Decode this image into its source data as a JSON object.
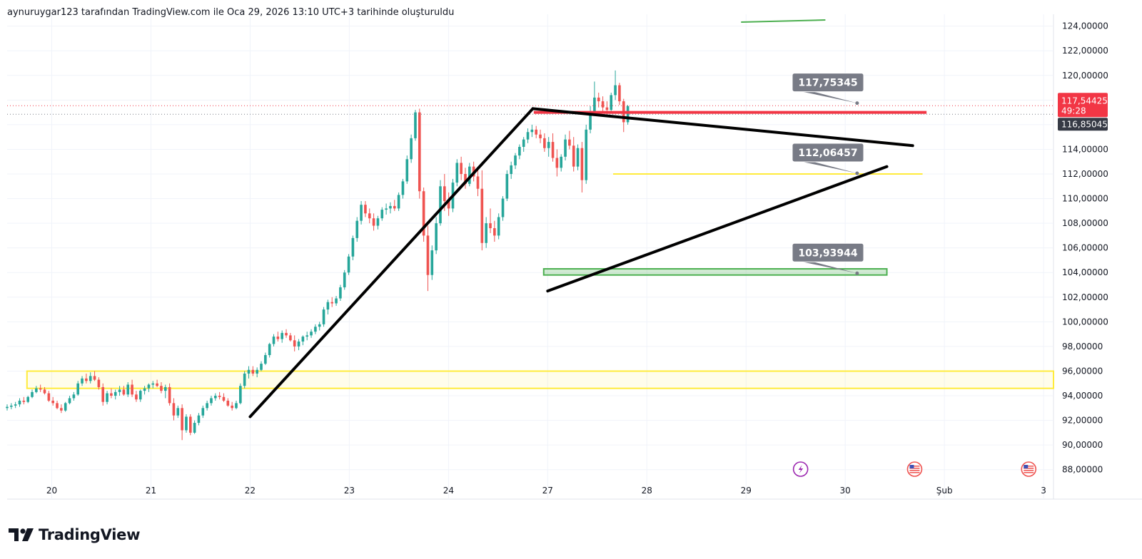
{
  "header": {
    "attribution": "aynuruygar123 tarafından TradingView.com ile Oca 29, 2026 13:10 UTC+3 tarihinde oluşturuldu"
  },
  "brand": {
    "name": "TradingView"
  },
  "colors": {
    "up": "#26a69a",
    "down": "#ef5350",
    "trendline": "#000000",
    "resistance": "#f23645",
    "support_zone": "#4caf50",
    "yellow_zone": "#ffeb3b",
    "callout_bg": "#787b86",
    "last_price_bg": "#f23645",
    "prev_price_bg": "#363a45"
  },
  "chart_data": {
    "type": "candlestick",
    "y_axis": {
      "range": [
        87,
        124.5
      ],
      "ticks": [
        "124,00000",
        "122,00000",
        "120,00000",
        "118,00000",
        "116,00000",
        "114,00000",
        "112,00000",
        "110,00000",
        "108,00000",
        "106,00000",
        "104,00000",
        "102,00000",
        "100,00000",
        "98,00000",
        "96,00000",
        "94,00000",
        "92,00000",
        "90,00000",
        "88,00000"
      ],
      "tick_values": [
        124,
        122,
        120,
        118,
        116,
        114,
        112,
        110,
        108,
        106,
        104,
        102,
        100,
        98,
        96,
        94,
        92,
        90,
        88
      ],
      "grid": true
    },
    "x_axis": {
      "ticks": [
        "20",
        "21",
        "22",
        "23",
        "24",
        "27",
        "28",
        "29",
        "30",
        "Şub",
        "3"
      ],
      "tick_positions": [
        1.0,
        2.0,
        3.0,
        4.0,
        5.0,
        6.0,
        7.0,
        8.0,
        9.0,
        10.0,
        11.0
      ],
      "range": [
        0.55,
        11.1
      ]
    },
    "price_tags": {
      "last": {
        "price": "117,54425",
        "countdown": "49:28",
        "value": 117.54
      },
      "prev": {
        "price": "116,85045",
        "value": 116.85
      }
    },
    "callouts": [
      {
        "label": "117,75345",
        "value": 117.75
      },
      {
        "label": "112,06457",
        "value": 112.06
      },
      {
        "label": "103,93944",
        "value": 103.94
      }
    ],
    "zones": [
      {
        "name": "yellow-support-zone",
        "low": 94.6,
        "high": 96.0,
        "x_start": 0.75,
        "x_end": 11.1
      },
      {
        "name": "green-demand-zone",
        "low": 103.8,
        "high": 104.3,
        "x_start": 5.96,
        "x_end": 9.42
      }
    ],
    "levels": [
      {
        "name": "resistance-line",
        "value": 117.0,
        "x_start": 5.86,
        "x_end": 9.82
      },
      {
        "name": "yellow-level-line",
        "value": 112.0,
        "x_start": 6.66,
        "x_end": 9.78
      }
    ],
    "trendlines": [
      {
        "name": "impulse-leg-up",
        "from": [
          3.0,
          92.3
        ],
        "to": [
          5.85,
          117.3
        ]
      },
      {
        "name": "triangle-upper-line",
        "from": [
          5.85,
          117.3
        ],
        "to": [
          9.68,
          114.3
        ]
      },
      {
        "name": "triangle-lower-line",
        "from": [
          6.0,
          102.5
        ],
        "to": [
          9.42,
          112.6
        ]
      }
    ],
    "candles_start": 0.55,
    "candles_step": 0.042,
    "candles": [
      [
        93.0,
        93.3,
        92.8,
        93.1
      ],
      [
        93.1,
        93.4,
        92.9,
        93.2
      ],
      [
        93.2,
        93.5,
        93.0,
        93.3
      ],
      [
        93.3,
        93.8,
        93.1,
        93.6
      ],
      [
        93.6,
        93.9,
        93.3,
        93.5
      ],
      [
        93.5,
        94.0,
        93.4,
        93.9
      ],
      [
        93.9,
        94.5,
        93.8,
        94.3
      ],
      [
        94.3,
        94.8,
        94.2,
        94.6
      ],
      [
        94.6,
        94.9,
        94.3,
        94.5
      ],
      [
        94.5,
        94.7,
        94.1,
        94.2
      ],
      [
        94.2,
        94.4,
        93.5,
        93.6
      ],
      [
        93.6,
        93.9,
        93.2,
        93.4
      ],
      [
        93.4,
        93.6,
        92.9,
        93.0
      ],
      [
        93.0,
        93.3,
        92.6,
        92.8
      ],
      [
        92.8,
        93.5,
        92.7,
        93.4
      ],
      [
        93.4,
        94.0,
        93.3,
        93.8
      ],
      [
        93.8,
        94.3,
        93.6,
        94.1
      ],
      [
        94.1,
        95.2,
        94.0,
        95.0
      ],
      [
        95.0,
        95.6,
        94.8,
        95.4
      ],
      [
        95.4,
        95.8,
        95.0,
        95.2
      ],
      [
        95.2,
        95.9,
        95.0,
        95.6
      ],
      [
        95.6,
        96.0,
        95.2,
        95.3
      ],
      [
        95.3,
        95.5,
        94.5,
        94.7
      ],
      [
        94.7,
        95.0,
        93.2,
        93.5
      ],
      [
        93.5,
        94.4,
        93.3,
        94.2
      ],
      [
        94.2,
        94.6,
        93.8,
        94.0
      ],
      [
        94.0,
        94.5,
        93.7,
        94.3
      ],
      [
        94.3,
        94.8,
        94.0,
        94.5
      ],
      [
        94.5,
        94.8,
        94.0,
        94.1
      ],
      [
        94.1,
        95.1,
        93.9,
        94.9
      ],
      [
        94.9,
        95.3,
        93.9,
        94.1
      ],
      [
        94.1,
        94.4,
        93.5,
        93.7
      ],
      [
        93.7,
        94.5,
        93.5,
        94.4
      ],
      [
        94.4,
        94.8,
        94.1,
        94.6
      ],
      [
        94.6,
        95.0,
        94.3,
        94.9
      ],
      [
        94.9,
        95.2,
        94.6,
        95.0
      ],
      [
        95.0,
        95.3,
        94.7,
        94.8
      ],
      [
        94.8,
        95.1,
        94.2,
        94.4
      ],
      [
        94.4,
        94.9,
        93.8,
        94.7
      ],
      [
        94.7,
        95.0,
        93.2,
        93.4
      ],
      [
        93.4,
        93.8,
        92.0,
        92.4
      ],
      [
        92.4,
        93.2,
        92.2,
        93.0
      ],
      [
        93.0,
        93.3,
        90.4,
        91.2
      ],
      [
        91.2,
        92.5,
        91.0,
        92.3
      ],
      [
        92.3,
        92.5,
        90.8,
        91.0
      ],
      [
        91.0,
        92.0,
        90.9,
        91.8
      ],
      [
        91.8,
        92.6,
        91.6,
        92.4
      ],
      [
        92.4,
        93.2,
        92.2,
        93.0
      ],
      [
        93.0,
        93.6,
        92.8,
        93.4
      ],
      [
        93.4,
        94.0,
        93.2,
        93.8
      ],
      [
        93.8,
        94.2,
        93.6,
        94.0
      ],
      [
        94.0,
        94.3,
        93.7,
        93.9
      ],
      [
        93.9,
        94.2,
        93.5,
        93.6
      ],
      [
        93.6,
        93.8,
        93.1,
        93.2
      ],
      [
        93.2,
        93.5,
        92.8,
        93.0
      ],
      [
        93.0,
        93.6,
        92.9,
        93.4
      ],
      [
        93.4,
        95.0,
        93.3,
        94.8
      ],
      [
        94.8,
        96.0,
        94.6,
        95.8
      ],
      [
        95.8,
        96.4,
        95.4,
        96.1
      ],
      [
        96.1,
        96.4,
        95.6,
        95.8
      ],
      [
        95.8,
        96.3,
        95.5,
        96.1
      ],
      [
        96.1,
        96.8,
        96.0,
        96.6
      ],
      [
        96.6,
        97.5,
        96.5,
        97.3
      ],
      [
        97.3,
        98.3,
        97.1,
        98.2
      ],
      [
        98.2,
        99.0,
        98.0,
        98.8
      ],
      [
        98.8,
        99.2,
        98.4,
        98.6
      ],
      [
        98.6,
        99.3,
        98.3,
        99.1
      ],
      [
        99.1,
        99.4,
        98.7,
        98.9
      ],
      [
        98.9,
        99.1,
        98.4,
        98.5
      ],
      [
        98.5,
        98.9,
        97.6,
        98.0
      ],
      [
        98.0,
        98.6,
        97.7,
        98.4
      ],
      [
        98.4,
        98.9,
        98.1,
        98.8
      ],
      [
        98.8,
        99.2,
        98.5,
        98.9
      ],
      [
        98.9,
        99.4,
        98.7,
        99.2
      ],
      [
        99.2,
        99.8,
        99.0,
        99.6
      ],
      [
        99.6,
        100.0,
        99.3,
        99.8
      ],
      [
        99.8,
        101.2,
        99.6,
        101.0
      ],
      [
        101.0,
        101.8,
        100.6,
        101.6
      ],
      [
        101.6,
        102.0,
        101.2,
        101.5
      ],
      [
        101.5,
        102.1,
        101.3,
        101.9
      ],
      [
        101.9,
        103.0,
        101.7,
        102.8
      ],
      [
        102.8,
        104.2,
        102.6,
        104.0
      ],
      [
        104.0,
        105.5,
        103.8,
        105.3
      ],
      [
        105.3,
        107.0,
        105.0,
        106.8
      ],
      [
        106.8,
        108.5,
        106.5,
        108.2
      ],
      [
        108.2,
        109.8,
        107.9,
        109.5
      ],
      [
        109.5,
        109.8,
        108.5,
        108.8
      ],
      [
        108.8,
        109.2,
        108.0,
        108.4
      ],
      [
        108.4,
        108.8,
        107.4,
        107.8
      ],
      [
        107.8,
        108.6,
        107.5,
        108.4
      ],
      [
        108.4,
        109.3,
        108.2,
        109.1
      ],
      [
        109.1,
        109.6,
        108.7,
        109.2
      ],
      [
        109.2,
        109.7,
        108.8,
        109.4
      ],
      [
        109.4,
        109.9,
        109.0,
        109.2
      ],
      [
        109.2,
        110.5,
        109.0,
        110.3
      ],
      [
        110.3,
        111.6,
        110.0,
        111.4
      ],
      [
        111.4,
        113.5,
        111.2,
        113.2
      ],
      [
        113.2,
        115.2,
        112.9,
        114.9
      ],
      [
        114.9,
        117.2,
        114.7,
        117.0
      ],
      [
        117.0,
        117.3,
        110.0,
        110.6
      ],
      [
        110.6,
        110.9,
        106.5,
        107.0
      ],
      [
        107.0,
        107.8,
        102.5,
        103.8
      ],
      [
        103.8,
        106.2,
        103.4,
        105.8
      ],
      [
        105.8,
        108.5,
        105.5,
        108.0
      ],
      [
        108.0,
        111.5,
        107.8,
        111.0
      ],
      [
        111.0,
        112.0,
        109.0,
        109.8
      ],
      [
        109.8,
        110.5,
        108.6,
        109.2
      ],
      [
        109.2,
        111.6,
        108.9,
        111.3
      ],
      [
        111.3,
        113.2,
        111.0,
        112.9
      ],
      [
        112.9,
        113.4,
        111.5,
        112.0
      ],
      [
        112.0,
        112.5,
        110.8,
        111.2
      ],
      [
        111.2,
        112.9,
        111.0,
        112.6
      ],
      [
        112.6,
        113.0,
        111.4,
        111.8
      ],
      [
        111.8,
        112.4,
        110.2,
        110.8
      ],
      [
        110.8,
        112.3,
        105.8,
        106.4
      ],
      [
        106.4,
        108.5,
        106.0,
        108.0
      ],
      [
        108.0,
        109.2,
        107.2,
        107.6
      ],
      [
        107.6,
        108.2,
        106.5,
        107.0
      ],
      [
        107.0,
        108.8,
        106.7,
        108.5
      ],
      [
        108.5,
        110.2,
        108.2,
        110.0
      ],
      [
        110.0,
        112.3,
        109.8,
        112.0
      ],
      [
        112.0,
        113.0,
        111.6,
        112.7
      ],
      [
        112.7,
        113.7,
        112.4,
        113.5
      ],
      [
        113.5,
        114.4,
        113.2,
        114.2
      ],
      [
        114.2,
        115.0,
        113.8,
        114.8
      ],
      [
        114.8,
        115.7,
        114.5,
        115.4
      ],
      [
        115.4,
        116.0,
        115.0,
        115.6
      ],
      [
        115.6,
        115.9,
        114.9,
        115.2
      ],
      [
        115.2,
        115.6,
        114.5,
        114.9
      ],
      [
        114.9,
        115.3,
        113.8,
        114.1
      ],
      [
        114.1,
        115.0,
        113.4,
        114.6
      ],
      [
        114.6,
        115.3,
        113.0,
        113.3
      ],
      [
        113.3,
        114.0,
        111.8,
        112.5
      ],
      [
        112.5,
        113.6,
        112.2,
        113.4
      ],
      [
        113.4,
        115.2,
        113.1,
        114.8
      ],
      [
        114.8,
        115.5,
        114.0,
        114.3
      ],
      [
        114.3,
        115.0,
        112.2,
        112.6
      ],
      [
        112.6,
        114.4,
        112.3,
        114.1
      ],
      [
        114.1,
        114.6,
        110.5,
        111.5
      ],
      [
        111.5,
        116.0,
        111.2,
        115.6
      ],
      [
        115.6,
        117.5,
        115.3,
        117.0
      ],
      [
        117.0,
        119.5,
        116.8,
        118.2
      ],
      [
        118.2,
        118.6,
        117.4,
        117.9
      ],
      [
        117.9,
        118.3,
        117.0,
        117.4
      ],
      [
        117.4,
        117.9,
        116.8,
        117.2
      ],
      [
        117.2,
        118.6,
        117.0,
        118.4
      ],
      [
        118.4,
        120.4,
        118.0,
        119.2
      ],
      [
        119.2,
        119.4,
        117.6,
        117.9
      ],
      [
        117.9,
        118.1,
        115.4,
        116.2
      ],
      [
        116.2,
        117.6,
        116.0,
        117.5
      ]
    ]
  }
}
